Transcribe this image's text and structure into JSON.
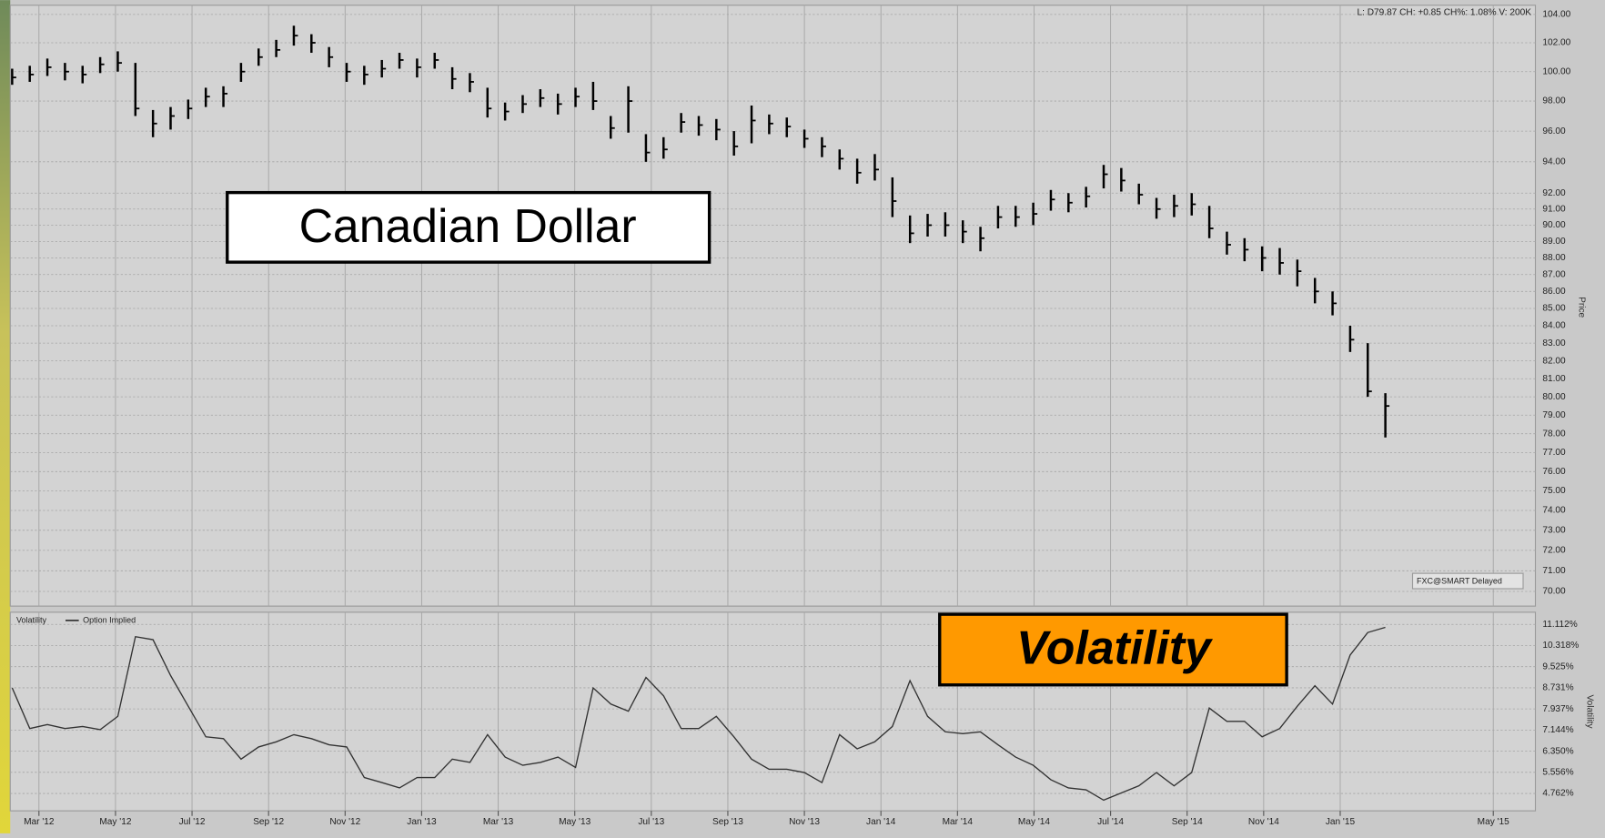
{
  "chart_data": [
    {
      "type": "ohlc",
      "title": "Canadian Dollar",
      "info": "L: D79.87 CH: +0.85 CH%: 1.08% V: 200K",
      "source": "FXC@SMART Delayed",
      "ylabel": "Price",
      "log": true,
      "grid": true,
      "color": "#000000",
      "xlim": [
        1.25,
        41.1
      ],
      "ylim": [
        69.3,
        104.66
      ],
      "yticks": [
        {
          "value": 104,
          "label": "104.00"
        },
        {
          "value": 102,
          "label": "102.00"
        },
        {
          "value": 100,
          "label": "100.00"
        },
        {
          "value": 98,
          "label": "98.00"
        },
        {
          "value": 96,
          "label": "96.00"
        },
        {
          "value": 94,
          "label": "94.00"
        },
        {
          "value": 92,
          "label": "92.00"
        },
        {
          "value": 91,
          "label": "91.00"
        },
        {
          "value": 90,
          "label": "90.00"
        },
        {
          "value": 89,
          "label": "89.00"
        },
        {
          "value": 88,
          "label": "88.00"
        },
        {
          "value": 87,
          "label": "87.00"
        },
        {
          "value": 86,
          "label": "86.00"
        },
        {
          "value": 85,
          "label": "85.00"
        },
        {
          "value": 84,
          "label": "84.00"
        },
        {
          "value": 83,
          "label": "83.00"
        },
        {
          "value": 82,
          "label": "82.00"
        },
        {
          "value": 81,
          "label": "81.00"
        },
        {
          "value": 80,
          "label": "80.00"
        },
        {
          "value": 79,
          "label": "79.00"
        },
        {
          "value": 78,
          "label": "78.00"
        },
        {
          "value": 77,
          "label": "77.00"
        },
        {
          "value": 76,
          "label": "76.00"
        },
        {
          "value": 75,
          "label": "75.00"
        },
        {
          "value": 74,
          "label": "74.00"
        },
        {
          "value": 73,
          "label": "73.00"
        },
        {
          "value": 72,
          "label": "72.00"
        },
        {
          "value": 71,
          "label": "71.00"
        },
        {
          "value": 70,
          "label": "70.00"
        }
      ],
      "x": [
        1.3,
        1.76,
        2.22,
        2.68,
        3.14,
        3.6,
        4.06,
        4.52,
        4.98,
        5.44,
        5.9,
        6.36,
        6.82,
        7.28,
        7.74,
        8.2,
        8.66,
        9.12,
        9.58,
        10.04,
        10.5,
        10.96,
        11.42,
        11.88,
        12.34,
        12.8,
        13.26,
        13.72,
        14.18,
        14.64,
        15.1,
        15.56,
        16.02,
        16.48,
        16.94,
        17.4,
        17.86,
        18.32,
        18.78,
        19.24,
        19.7,
        20.16,
        20.62,
        21.08,
        21.54,
        22.0,
        22.46,
        22.92,
        23.38,
        23.84,
        24.3,
        24.76,
        25.22,
        25.68,
        26.14,
        26.6,
        27.06,
        27.52,
        27.98,
        28.44,
        28.9,
        29.36,
        29.82,
        30.28,
        30.74,
        31.2,
        31.66,
        32.12,
        32.58,
        33.04,
        33.5,
        33.96,
        34.42,
        34.88,
        35.34,
        35.8,
        36.26,
        36.72,
        37.18
      ],
      "high": [
        100.2,
        100.4,
        100.9,
        100.6,
        100.4,
        101.0,
        101.4,
        100.6,
        97.4,
        97.6,
        98.1,
        98.9,
        99.0,
        100.6,
        101.6,
        102.2,
        103.2,
        102.6,
        101.7,
        100.6,
        100.4,
        100.8,
        101.3,
        100.9,
        101.3,
        100.3,
        99.9,
        98.9,
        97.9,
        98.4,
        98.8,
        98.5,
        98.9,
        99.3,
        97.0,
        99.0,
        95.8,
        95.6,
        97.2,
        97.0,
        96.8,
        96.0,
        97.7,
        97.1,
        96.9,
        96.1,
        95.6,
        94.8,
        94.2,
        94.5,
        93.0,
        90.6,
        90.7,
        90.8,
        90.3,
        89.9,
        91.2,
        91.2,
        91.4,
        92.2,
        92.0,
        92.4,
        93.8,
        93.6,
        92.6,
        91.7,
        91.9,
        92.0,
        91.2,
        89.6,
        89.2,
        88.7,
        88.6,
        87.9,
        86.8,
        86.0,
        84.0,
        83.0,
        80.2
      ],
      "low": [
        99.1,
        99.3,
        99.7,
        99.4,
        99.2,
        99.9,
        100.0,
        97.0,
        95.6,
        96.1,
        96.8,
        97.6,
        97.6,
        99.3,
        100.4,
        101.0,
        101.8,
        101.3,
        100.3,
        99.3,
        99.1,
        99.6,
        100.2,
        99.6,
        100.2,
        98.8,
        98.6,
        96.9,
        96.7,
        97.2,
        97.6,
        97.1,
        97.6,
        97.4,
        95.5,
        95.9,
        94.0,
        94.2,
        95.9,
        95.7,
        95.4,
        94.4,
        95.2,
        95.8,
        95.6,
        94.9,
        94.3,
        93.5,
        92.6,
        92.8,
        90.5,
        88.9,
        89.3,
        89.3,
        88.9,
        88.4,
        89.8,
        89.9,
        90.0,
        90.9,
        90.8,
        91.1,
        92.3,
        92.1,
        91.3,
        90.4,
        90.5,
        90.6,
        89.2,
        88.2,
        87.8,
        87.2,
        87.0,
        86.3,
        85.3,
        84.6,
        82.5,
        80.0,
        77.8
      ],
      "close": [
        99.6,
        99.8,
        100.3,
        100.0,
        99.8,
        100.5,
        100.6,
        97.5,
        96.5,
        97.0,
        97.5,
        98.3,
        98.5,
        100.0,
        101.0,
        101.5,
        102.5,
        102.0,
        101.0,
        100.0,
        99.8,
        100.2,
        100.8,
        100.3,
        100.8,
        99.5,
        99.3,
        97.5,
        97.3,
        97.8,
        98.2,
        97.8,
        98.3,
        98.0,
        96.2,
        98.0,
        94.6,
        94.8,
        96.6,
        96.4,
        96.1,
        95.0,
        96.7,
        96.5,
        96.3,
        95.5,
        95.0,
        94.2,
        93.3,
        93.5,
        91.5,
        89.5,
        90.0,
        90.0,
        89.6,
        89.2,
        90.5,
        90.5,
        90.7,
        91.6,
        91.4,
        91.8,
        93.2,
        92.8,
        91.9,
        91.0,
        91.2,
        91.3,
        89.8,
        88.8,
        88.5,
        88.0,
        87.7,
        87.2,
        86.0,
        85.3,
        83.2,
        80.3,
        79.5
      ]
    },
    {
      "type": "line",
      "title": "Volatility",
      "label": "Volatility",
      "ylabel": "Volatility",
      "grid": true,
      "xlim": [
        1.25,
        41.1
      ],
      "xticks": [
        {
          "value": 2,
          "label": "Mar '12"
        },
        {
          "value": 4,
          "label": "May '12"
        },
        {
          "value": 6,
          "label": "Jul '12"
        },
        {
          "value": 8,
          "label": "Sep '12"
        },
        {
          "value": 10,
          "label": "Nov '12"
        },
        {
          "value": 12,
          "label": "Jan '13"
        },
        {
          "value": 14,
          "label": "Mar '13"
        },
        {
          "value": 16,
          "label": "May '13"
        },
        {
          "value": 18,
          "label": "Jul '13"
        },
        {
          "value": 20,
          "label": "Sep '13"
        },
        {
          "value": 22,
          "label": "Nov '13"
        },
        {
          "value": 24,
          "label": "Jan '14"
        },
        {
          "value": 26,
          "label": "Mar '14"
        },
        {
          "value": 28,
          "label": "May '14"
        },
        {
          "value": 30,
          "label": "Jul '14"
        },
        {
          "value": 32,
          "label": "Sep '14"
        },
        {
          "value": 34,
          "label": "Nov '14"
        },
        {
          "value": 36,
          "label": "Jan '15"
        },
        {
          "value": 40,
          "label": "May '15"
        }
      ],
      "ylim": [
        4.11,
        11.57
      ],
      "yticks": [
        {
          "value": 11.112,
          "label": "11.112%"
        },
        {
          "value": 10.318,
          "label": "10.318%"
        },
        {
          "value": 9.525,
          "label": "9.525%"
        },
        {
          "value": 8.731,
          "label": "8.731%"
        },
        {
          "value": 7.937,
          "label": "7.937%"
        },
        {
          "value": 7.144,
          "label": "7.144%"
        },
        {
          "value": 6.35,
          "label": "6.350%"
        },
        {
          "value": 5.556,
          "label": "5.556%"
        },
        {
          "value": 4.762,
          "label": "4.762%"
        }
      ],
      "x": [
        1.3,
        1.76,
        2.22,
        2.68,
        3.14,
        3.6,
        4.06,
        4.52,
        4.98,
        5.44,
        5.9,
        6.36,
        6.82,
        7.28,
        7.74,
        8.2,
        8.66,
        9.12,
        9.58,
        10.04,
        10.5,
        10.96,
        11.42,
        11.88,
        12.34,
        12.8,
        13.26,
        13.72,
        14.18,
        14.64,
        15.1,
        15.56,
        16.02,
        16.48,
        16.94,
        17.4,
        17.86,
        18.32,
        18.78,
        19.24,
        19.7,
        20.16,
        20.62,
        21.08,
        21.54,
        22.0,
        22.46,
        22.92,
        23.38,
        23.84,
        24.3,
        24.76,
        25.22,
        25.68,
        26.14,
        26.6,
        27.06,
        27.52,
        27.98,
        28.44,
        28.9,
        29.36,
        29.82,
        30.28,
        30.74,
        31.2,
        31.66,
        32.12,
        32.58,
        33.04,
        33.5,
        33.96,
        34.42,
        34.88,
        35.34,
        35.8,
        36.26,
        36.72,
        37.18
      ],
      "series": [
        {
          "name": "Option Implied",
          "color": "#333333",
          "values": [
            8.73,
            7.2,
            7.35,
            7.2,
            7.28,
            7.16,
            7.66,
            10.65,
            10.54,
            9.19,
            8.04,
            6.89,
            6.82,
            6.05,
            6.51,
            6.7,
            6.97,
            6.82,
            6.59,
            6.51,
            5.36,
            5.17,
            4.97,
            5.36,
            5.36,
            6.05,
            5.93,
            6.97,
            6.13,
            5.82,
            5.93,
            6.13,
            5.74,
            8.73,
            8.12,
            7.85,
            9.12,
            8.43,
            7.2,
            7.2,
            7.66,
            6.89,
            6.05,
            5.67,
            5.67,
            5.55,
            5.17,
            6.97,
            6.44,
            6.7,
            7.28,
            9.0,
            7.66,
            7.08,
            7.01,
            7.08,
            6.59,
            6.13,
            5.82,
            5.28,
            4.97,
            4.9,
            4.51,
            4.78,
            5.05,
            5.55,
            5.05,
            5.55,
            7.97,
            7.47,
            7.47,
            6.89,
            7.2,
            8.04,
            8.81,
            8.12,
            9.96,
            10.81,
            11.0
          ]
        }
      ]
    }
  ]
}
